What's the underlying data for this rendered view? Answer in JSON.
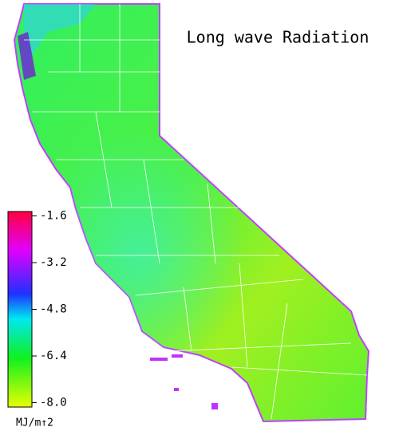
{
  "title": "Long wave Radiation",
  "colorbar": {
    "lim": [
      -8.15,
      -1.45
    ],
    "ticks": [
      -1.6,
      -3.2,
      -4.8,
      -6.4,
      {
        "value": -8,
        "label": "-8.0"
      }
    ],
    "label": "MJ/m↑2"
  }
}
